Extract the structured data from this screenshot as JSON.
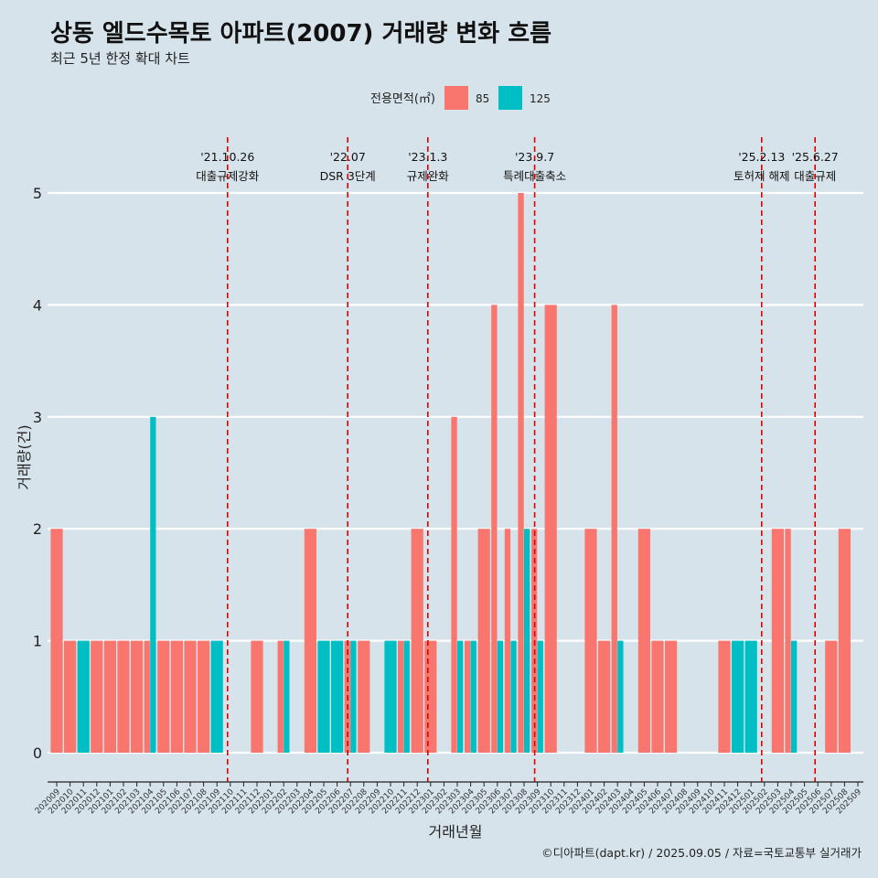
{
  "title": "상동 엘드수목토 아파트(2007) 거래량 변화 흐름",
  "subtitle": "최근 5년 한정 확대 차트",
  "caption": "©디아파트(dapt.kr) / 2025.09.05 / 자료=국토교통부 실거래가",
  "chart_data": {
    "type": "bar",
    "xlabel": "거래년월",
    "ylabel": "거래량(건)",
    "ylim": [
      0,
      5
    ],
    "yticks": [
      0,
      1,
      2,
      3,
      4,
      5
    ],
    "legend": {
      "title": "전용면적(㎡)",
      "position": "top",
      "entries": [
        "85",
        "125"
      ]
    },
    "colors": {
      "85": "#f8766d",
      "125": "#00bfc4"
    },
    "categories": [
      "202009",
      "202010",
      "202011",
      "202012",
      "202101",
      "202102",
      "202103",
      "202104",
      "202105",
      "202106",
      "202107",
      "202108",
      "202109",
      "202110",
      "202111",
      "202112",
      "202201",
      "202202",
      "202203",
      "202204",
      "202205",
      "202206",
      "202207",
      "202208",
      "202209",
      "202210",
      "202211",
      "202212",
      "202301",
      "202302",
      "202303",
      "202304",
      "202305",
      "202306",
      "202307",
      "202308",
      "202309",
      "202310",
      "202311",
      "202312",
      "202401",
      "202402",
      "202403",
      "202404",
      "202405",
      "202406",
      "202407",
      "202408",
      "202409",
      "202410",
      "202411",
      "202412",
      "202501",
      "202502",
      "202503",
      "202504",
      "202505",
      "202506",
      "202507",
      "202508",
      "202509"
    ],
    "series": [
      {
        "name": "85",
        "values": [
          2,
          1,
          0,
          1,
          1,
          1,
          1,
          1,
          1,
          1,
          1,
          1,
          0,
          0,
          0,
          1,
          0,
          1,
          0,
          2,
          0,
          0,
          1,
          1,
          0,
          0,
          1,
          2,
          1,
          0,
          3,
          1,
          2,
          4,
          2,
          5,
          2,
          4,
          0,
          0,
          2,
          1,
          4,
          0,
          2,
          1,
          1,
          0,
          0,
          0,
          1,
          0,
          0,
          0,
          2,
          2,
          0,
          0,
          1,
          2,
          0
        ]
      },
      {
        "name": "125",
        "values": [
          0,
          0,
          1,
          0,
          0,
          0,
          0,
          3,
          0,
          0,
          0,
          0,
          1,
          0,
          0,
          0,
          0,
          1,
          0,
          0,
          1,
          1,
          1,
          0,
          0,
          1,
          1,
          0,
          0,
          0,
          1,
          1,
          0,
          1,
          1,
          2,
          1,
          0,
          0,
          0,
          0,
          0,
          1,
          0,
          0,
          0,
          0,
          0,
          0,
          0,
          0,
          1,
          1,
          0,
          0,
          1,
          0,
          0,
          0,
          0,
          0
        ]
      }
    ],
    "events": [
      {
        "date": "'21.10.26",
        "label": "대출규제강화",
        "after": "202110"
      },
      {
        "date": "'22.07",
        "label": "DSR 3단계",
        "after": "202207"
      },
      {
        "date": "'23.1.3",
        "label": "규제완화",
        "after": "202301"
      },
      {
        "date": "'23.9.7",
        "label": "특례대출축소",
        "after": "202309"
      },
      {
        "date": "'25.2.13",
        "label": "토허제 해제",
        "after": "202502"
      },
      {
        "date": "'25.6.27",
        "label": "대출규제",
        "after": "202506"
      }
    ]
  }
}
